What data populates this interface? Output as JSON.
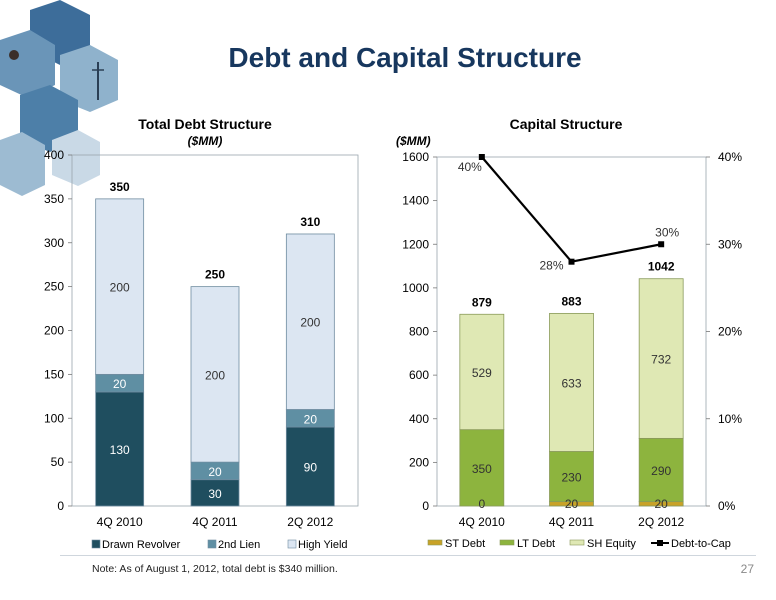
{
  "title": "Debt and Capital Structure",
  "note": "Note: As of August 1, 2012, total debt is $340 million.",
  "page_number": "27",
  "colors": {
    "title": "#17375e",
    "drawn_revolver": "#1f4e5f",
    "second_lien": "#5f8fa3",
    "high_yield": "#dce6f2",
    "st_debt": "#c9a227",
    "lt_debt": "#8db43e",
    "sh_equity": "#dfe8b4",
    "debt_to_cap": "#000000"
  },
  "chart_data": [
    {
      "type": "bar",
      "stacked": true,
      "title": "Total Debt Structure",
      "subtitle": "($MM)",
      "categories": [
        "4Q 2010",
        "4Q 2011",
        "2Q 2012"
      ],
      "series": [
        {
          "name": "Drawn Revolver",
          "values": [
            130,
            30,
            90
          ]
        },
        {
          "name": "2nd Lien",
          "values": [
            20,
            20,
            20
          ]
        },
        {
          "name": "High Yield",
          "values": [
            200,
            200,
            200
          ]
        }
      ],
      "totals": [
        350,
        250,
        310
      ],
      "yticks": [
        "0",
        "50",
        "100",
        "150",
        "200",
        "250",
        "300",
        "350",
        "400"
      ],
      "ylim": [
        0,
        400
      ],
      "legend": "bottom"
    },
    {
      "type": "bar",
      "stacked": true,
      "title": "Capital Structure",
      "ylabel": "($MM)",
      "categories": [
        "4Q 2010",
        "4Q 2011",
        "2Q 2012"
      ],
      "series": [
        {
          "name": "ST Debt",
          "values": [
            0,
            20,
            20
          ]
        },
        {
          "name": "LT Debt",
          "values": [
            350,
            230,
            290
          ]
        },
        {
          "name": "SH Equity",
          "values": [
            529,
            633,
            732
          ]
        }
      ],
      "totals": [
        879,
        883,
        1042
      ],
      "line_series": {
        "name": "Debt-to-Cap",
        "values": [
          40,
          28,
          30
        ],
        "labels": [
          "40%",
          "28%",
          "30%"
        ]
      },
      "yticks": [
        "0",
        "200",
        "400",
        "600",
        "800",
        "1000",
        "1200",
        "1400",
        "1600"
      ],
      "ylim": [
        0,
        1600
      ],
      "y2ticks": [
        "0%",
        "10%",
        "20%",
        "30%",
        "40%"
      ],
      "y2lim": [
        0,
        40
      ],
      "legend": "bottom"
    }
  ]
}
